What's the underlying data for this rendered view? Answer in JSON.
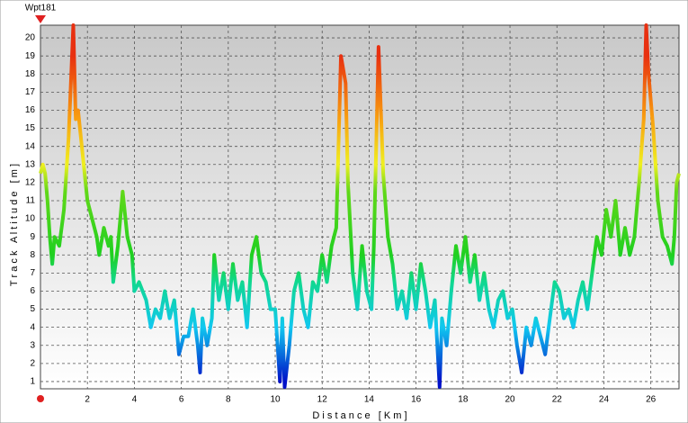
{
  "chart_data": {
    "type": "line",
    "waypoint": "Wpt181",
    "xlabel": "D i s t a n c e   [ K m ]",
    "ylabel": "T r a c k   A l t i t u d e   [ m ]",
    "xlim": [
      0,
      27.2
    ],
    "ylim": [
      0.6,
      20.7
    ],
    "xticks": [
      2,
      4,
      6,
      8,
      10,
      12,
      14,
      16,
      18,
      20,
      22,
      24,
      26
    ],
    "yticks": [
      1,
      2,
      3,
      4,
      5,
      6,
      7,
      8,
      9,
      10,
      11,
      12,
      13,
      14,
      15,
      16,
      17,
      18,
      19,
      20
    ],
    "grid": true,
    "colorscale": [
      {
        "value": 1,
        "color": "#0010c8"
      },
      {
        "value": 4,
        "color": "#10c8f0"
      },
      {
        "value": 6.5,
        "color": "#10d890"
      },
      {
        "value": 8,
        "color": "#20d020"
      },
      {
        "value": 11.5,
        "color": "#60d818"
      },
      {
        "value": 13,
        "color": "#f0f020"
      },
      {
        "value": 15.5,
        "color": "#f8a010"
      },
      {
        "value": 19,
        "color": "#e83010"
      }
    ],
    "x": [
      0,
      0.1,
      0.2,
      0.3,
      0.4,
      0.5,
      0.6,
      0.8,
      1.0,
      1.2,
      1.4,
      1.5,
      1.6,
      1.8,
      2.0,
      2.2,
      2.4,
      2.5,
      2.7,
      2.9,
      3.0,
      3.1,
      3.3,
      3.5,
      3.7,
      3.9,
      4.0,
      4.2,
      4.5,
      4.7,
      4.9,
      5.1,
      5.3,
      5.5,
      5.7,
      5.9,
      6.1,
      6.3,
      6.5,
      6.7,
      6.8,
      6.9,
      7.1,
      7.3,
      7.4,
      7.6,
      7.8,
      8.0,
      8.2,
      8.4,
      8.6,
      8.8,
      9.0,
      9.2,
      9.4,
      9.6,
      9.8,
      10.0,
      10.2,
      10.3,
      10.4,
      10.6,
      10.8,
      11.0,
      11.2,
      11.4,
      11.6,
      11.8,
      12.0,
      12.2,
      12.4,
      12.6,
      12.8,
      13.0,
      13.1,
      13.3,
      13.5,
      13.7,
      13.9,
      14.1,
      14.2,
      14.4,
      14.6,
      14.8,
      15.0,
      15.2,
      15.4,
      15.6,
      15.8,
      16.0,
      16.2,
      16.4,
      16.6,
      16.8,
      17.0,
      17.1,
      17.3,
      17.5,
      17.7,
      17.9,
      18.1,
      18.3,
      18.5,
      18.7,
      18.9,
      19.1,
      19.3,
      19.5,
      19.7,
      19.9,
      20.1,
      20.3,
      20.5,
      20.7,
      20.9,
      21.1,
      21.3,
      21.5,
      21.7,
      21.9,
      22.1,
      22.3,
      22.5,
      22.7,
      22.9,
      23.1,
      23.3,
      23.5,
      23.7,
      23.9,
      24.1,
      24.3,
      24.5,
      24.7,
      24.9,
      25.1,
      25.3,
      25.5,
      25.7,
      25.8,
      25.9,
      26.1,
      26.3,
      26.5,
      26.7,
      26.9,
      27.0,
      27.1,
      27.2
    ],
    "values": [
      12.5,
      13,
      12.5,
      11,
      9,
      7.5,
      9,
      8.5,
      10.5,
      14.5,
      20.7,
      15.5,
      16,
      13.5,
      11,
      10,
      9,
      8,
      9.5,
      8.5,
      9,
      6.5,
      8.5,
      11.5,
      9,
      8,
      6,
      6.5,
      5.5,
      4,
      5,
      4.5,
      6,
      4.5,
      5.5,
      2.5,
      3.5,
      3.5,
      5,
      3,
      1.5,
      4.5,
      3,
      4.5,
      8,
      5.5,
      7,
      5,
      7.5,
      5.5,
      6.5,
      4,
      8,
      9,
      7,
      6.5,
      5,
      5,
      1,
      4.5,
      0.7,
      3,
      6,
      7,
      5,
      4,
      6.5,
      6,
      8,
      6.5,
      8.5,
      9.5,
      19,
      17.5,
      12,
      7,
      5,
      8.5,
      6,
      5,
      8.5,
      19.5,
      12.5,
      9,
      7.5,
      5,
      6,
      4.5,
      7,
      5,
      7.5,
      6,
      4,
      5.5,
      0.7,
      4.5,
      3,
      6,
      8.5,
      7,
      9,
      6.5,
      8,
      5.5,
      7,
      5,
      4,
      5.5,
      6,
      4.5,
      5,
      3,
      1.5,
      4,
      3,
      4.5,
      3.5,
      2.5,
      4.5,
      6.5,
      6,
      4.5,
      5,
      4,
      5.5,
      6.5,
      5,
      7,
      9,
      8,
      10.5,
      9,
      11,
      8,
      9.5,
      8,
      9,
      12,
      15.5,
      20.7,
      18,
      15,
      11,
      9,
      8.5,
      7.5,
      9,
      12,
      12.5
    ]
  }
}
